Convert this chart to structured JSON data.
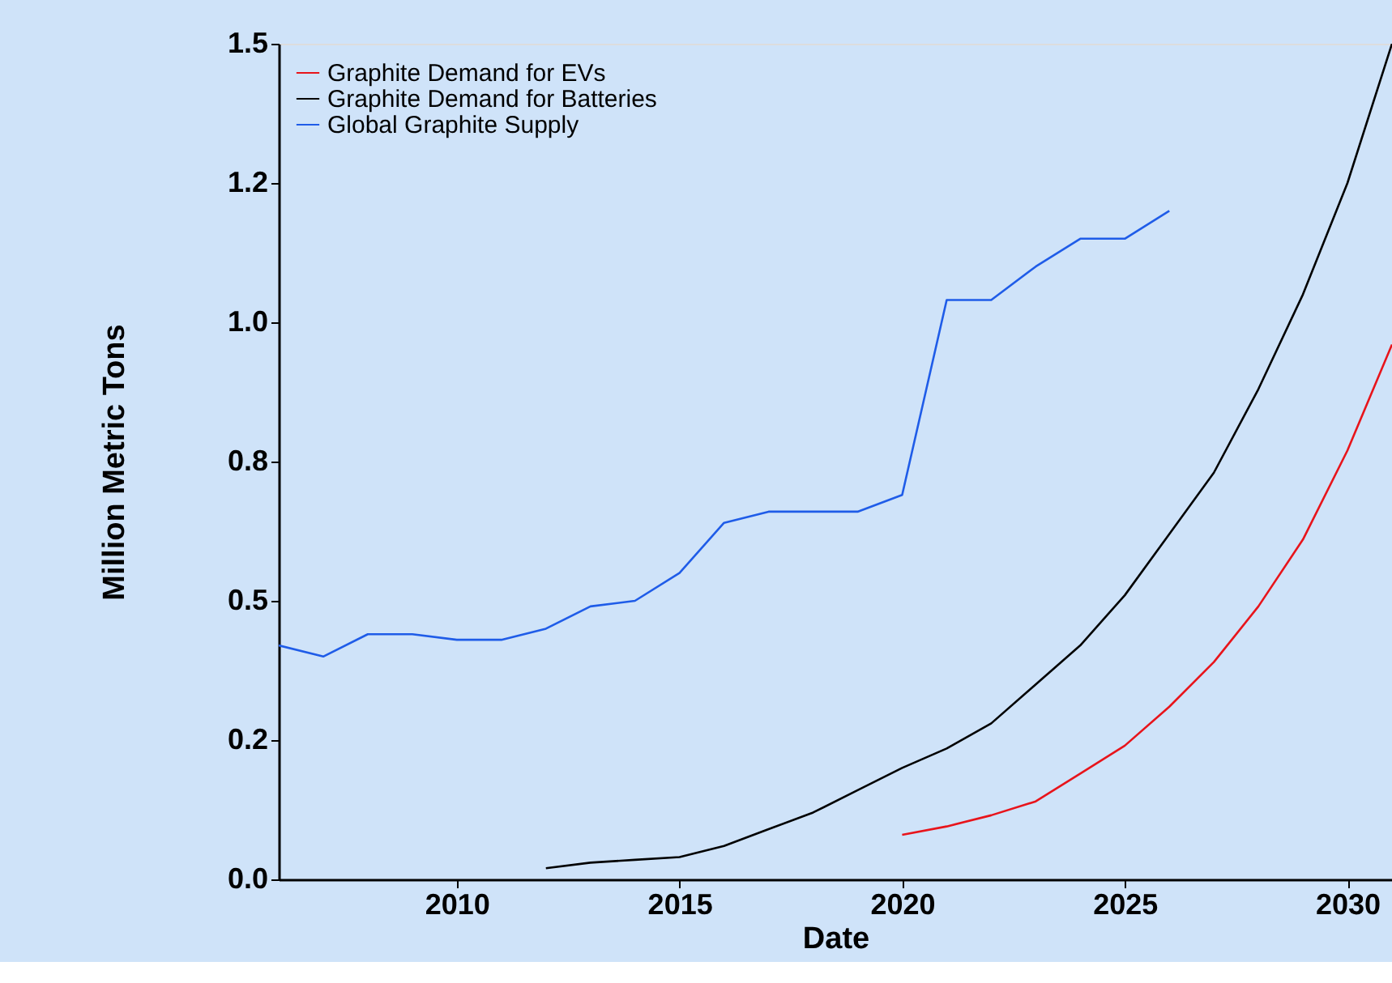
{
  "chart_data": {
    "type": "line",
    "xlabel": "Date",
    "ylabel": "Million Metric Tons",
    "xlim": [
      2006,
      2031
    ],
    "xticks": [
      2010,
      2015,
      2020,
      2025,
      2030
    ],
    "ylim": [
      0,
      1.5
    ],
    "yticks": [
      {
        "value": 0,
        "label": "0.0"
      },
      {
        "value": 0.25,
        "label": "0.2"
      },
      {
        "value": 0.5,
        "label": "0.5"
      },
      {
        "value": 0.75,
        "label": "0.8"
      },
      {
        "value": 1.0,
        "label": "1.0"
      },
      {
        "value": 1.25,
        "label": "1.2"
      },
      {
        "value": 1.5,
        "label": "1.5"
      }
    ],
    "grid": false,
    "legend": "top left",
    "marker": "none",
    "line_style": "solid",
    "series": [
      {
        "name": "Graphite Demand for EVs",
        "color": "#e8141b",
        "x": [
          2020,
          2021,
          2022,
          2023,
          2024,
          2025,
          2026,
          2027,
          2028,
          2029,
          2030,
          2031
        ],
        "values": [
          0.08,
          0.095,
          0.115,
          0.14,
          0.19,
          0.24,
          0.31,
          0.39,
          0.49,
          0.61,
          0.77,
          0.96
        ]
      },
      {
        "name": "Graphite Demand for Batteries",
        "color": "#000000",
        "x": [
          2012,
          2013,
          2014,
          2015,
          2016,
          2017,
          2018,
          2019,
          2020,
          2021,
          2022,
          2023,
          2024,
          2025,
          2026,
          2027,
          2028,
          2029,
          2030,
          2031
        ],
        "values": [
          0.02,
          0.03,
          0.035,
          0.04,
          0.06,
          0.09,
          0.12,
          0.16,
          0.2,
          0.235,
          0.28,
          0.35,
          0.42,
          0.51,
          0.62,
          0.73,
          0.88,
          1.05,
          1.25,
          1.5
        ]
      },
      {
        "name": "Global Graphite Supply",
        "color": "#1f5ce8",
        "x": [
          2006,
          2007,
          2008,
          2009,
          2010,
          2011,
          2012,
          2013,
          2014,
          2015,
          2016,
          2017,
          2018,
          2019,
          2020,
          2021,
          2022,
          2023,
          2024,
          2025,
          2026
        ],
        "values": [
          0.42,
          0.4,
          0.44,
          0.44,
          0.43,
          0.43,
          0.45,
          0.49,
          0.5,
          0.55,
          0.64,
          0.66,
          0.66,
          0.66,
          0.69,
          1.04,
          1.04,
          1.1,
          1.15,
          1.15,
          1.2
        ]
      }
    ]
  }
}
